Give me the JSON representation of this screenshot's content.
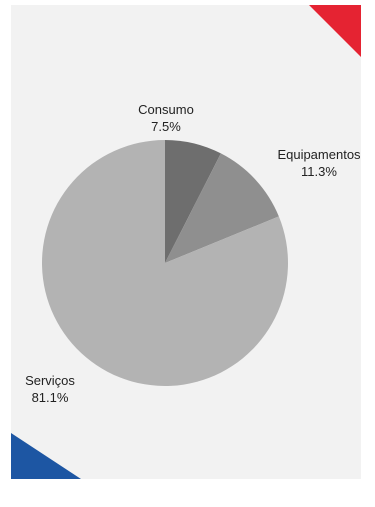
{
  "chart_data": {
    "type": "pie",
    "start_angle_deg": 0,
    "direction": "clockwise",
    "slices": [
      {
        "label": "Consumo",
        "value": 7.5,
        "value_label": "7.5%",
        "color": "#6e6e6e"
      },
      {
        "label": "Equipamentos",
        "value": 11.3,
        "value_label": "11.3%",
        "color": "#8f8f8f"
      },
      {
        "label": "Serviços",
        "value": 81.1,
        "value_label": "81.1%",
        "color": "#b3b3b3"
      }
    ],
    "legend": "none"
  },
  "colors": {
    "background": "#f2f2f2",
    "corner_top_right": "#e52332",
    "corner_bottom_left": "#1d56a3"
  }
}
